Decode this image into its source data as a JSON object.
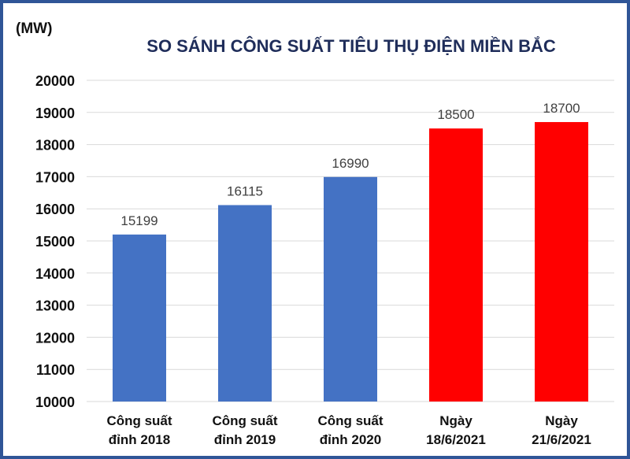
{
  "chart_data": {
    "type": "bar",
    "title": "SO SÁNH CÔNG SUẤT TIÊU THỤ ĐIỆN MIỀN BẮC",
    "ylabel": "(MW)",
    "xlabel": "",
    "ylim": [
      10000,
      20000
    ],
    "yticks": [
      10000,
      11000,
      12000,
      13000,
      14000,
      15000,
      16000,
      17000,
      18000,
      19000,
      20000
    ],
    "grid": true,
    "categories": [
      [
        "Công suất",
        "đỉnh 2018"
      ],
      [
        "Công suất",
        "đỉnh 2019"
      ],
      [
        "Công suất",
        "đỉnh 2020"
      ],
      [
        "Ngày",
        "18/6/2021"
      ],
      [
        "Ngày",
        "21/6/2021"
      ]
    ],
    "values": [
      15199,
      16115,
      16990,
      18500,
      18700
    ],
    "colors": [
      "#4472c4",
      "#4472c4",
      "#4472c4",
      "#ff0000",
      "#ff0000"
    ],
    "title_color": "#1f2d5a",
    "frame_color": "#2f5597"
  }
}
